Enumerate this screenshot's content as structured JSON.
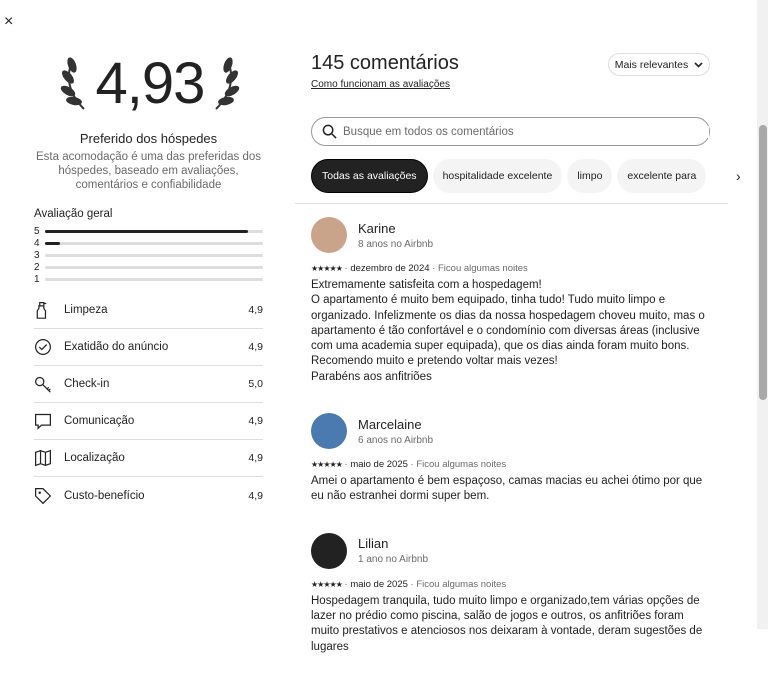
{
  "close_label": "×",
  "rating": {
    "value": "4,93",
    "title": "Preferido dos hóspedes",
    "description": "Esta acomodação é uma das preferidas dos hóspedes, baseado em avaliações, comentários e confiabilidade"
  },
  "overall": {
    "label": "Avaliação geral",
    "bars": [
      {
        "star": "5",
        "fraction": 0.93
      },
      {
        "star": "4",
        "fraction": 0.07
      },
      {
        "star": "3",
        "fraction": 0
      },
      {
        "star": "2",
        "fraction": 0
      },
      {
        "star": "1",
        "fraction": 0
      }
    ]
  },
  "categories": [
    {
      "label": "Limpeza",
      "value": "4,9",
      "icon": "spray-bottle-icon"
    },
    {
      "label": "Exatidão do anúncio",
      "value": "4,9",
      "icon": "check-circle-icon"
    },
    {
      "label": "Check-in",
      "value": "5,0",
      "icon": "key-icon"
    },
    {
      "label": "Comunicação",
      "value": "4,9",
      "icon": "chat-bubble-icon"
    },
    {
      "label": "Localização",
      "value": "4,9",
      "icon": "map-icon"
    },
    {
      "label": "Custo-benefício",
      "value": "4,9",
      "icon": "tag-icon"
    }
  ],
  "reviews_header": {
    "count": "145 comentários",
    "how_link": "Como funcionam as avaliações",
    "sort": "Mais relevantes"
  },
  "search": {
    "placeholder": "Busque em todos os comentários"
  },
  "chips": [
    "Todas as avaliações",
    "hospitalidade excelente",
    "limpo",
    "excelente para"
  ],
  "reviews": [
    {
      "name": "Karine",
      "since": "8 anos no Airbnb",
      "stars": "★★★★★",
      "date": "dezembro de 2024",
      "stay": "Ficou algumas noites",
      "text": "Extremamente satisfeita com a hospedagem!\nO apartamento é muito bem equipado, tinha tudo! Tudo muito limpo e organizado. Infelizmente os dias da nossa hospedagem choveu muito, mas o apartamento é tão confortável e o condomínio com diversas áreas (inclusive com uma academia super equipada), que os dias ainda foram muito bons.\nRecomendo muito e pretendo voltar mais vezes!\nParabéns aos anfitriões"
    },
    {
      "name": "Marcelaine",
      "since": "6 anos no Airbnb",
      "stars": "★★★★★",
      "date": "maio de 2025",
      "stay": "Ficou algumas noites",
      "text": "Amei o apartamento é bem espaçoso, camas macias eu achei ótimo por que eu não estranhei dormi super bem."
    },
    {
      "name": "Lilian",
      "since": "1 ano no Airbnb",
      "stars": "★★★★★",
      "date": "maio de 2025",
      "stay": "Ficou algumas noites",
      "text": "Hospedagem tranquila, tudo muito limpo e organizado,tem várias opções de lazer no prédio como piscina, salão de jogos e outros, os anfitriões foram muito prestativos e atenciosos nos deixaram à vontade, deram sugestões de lugares"
    }
  ]
}
